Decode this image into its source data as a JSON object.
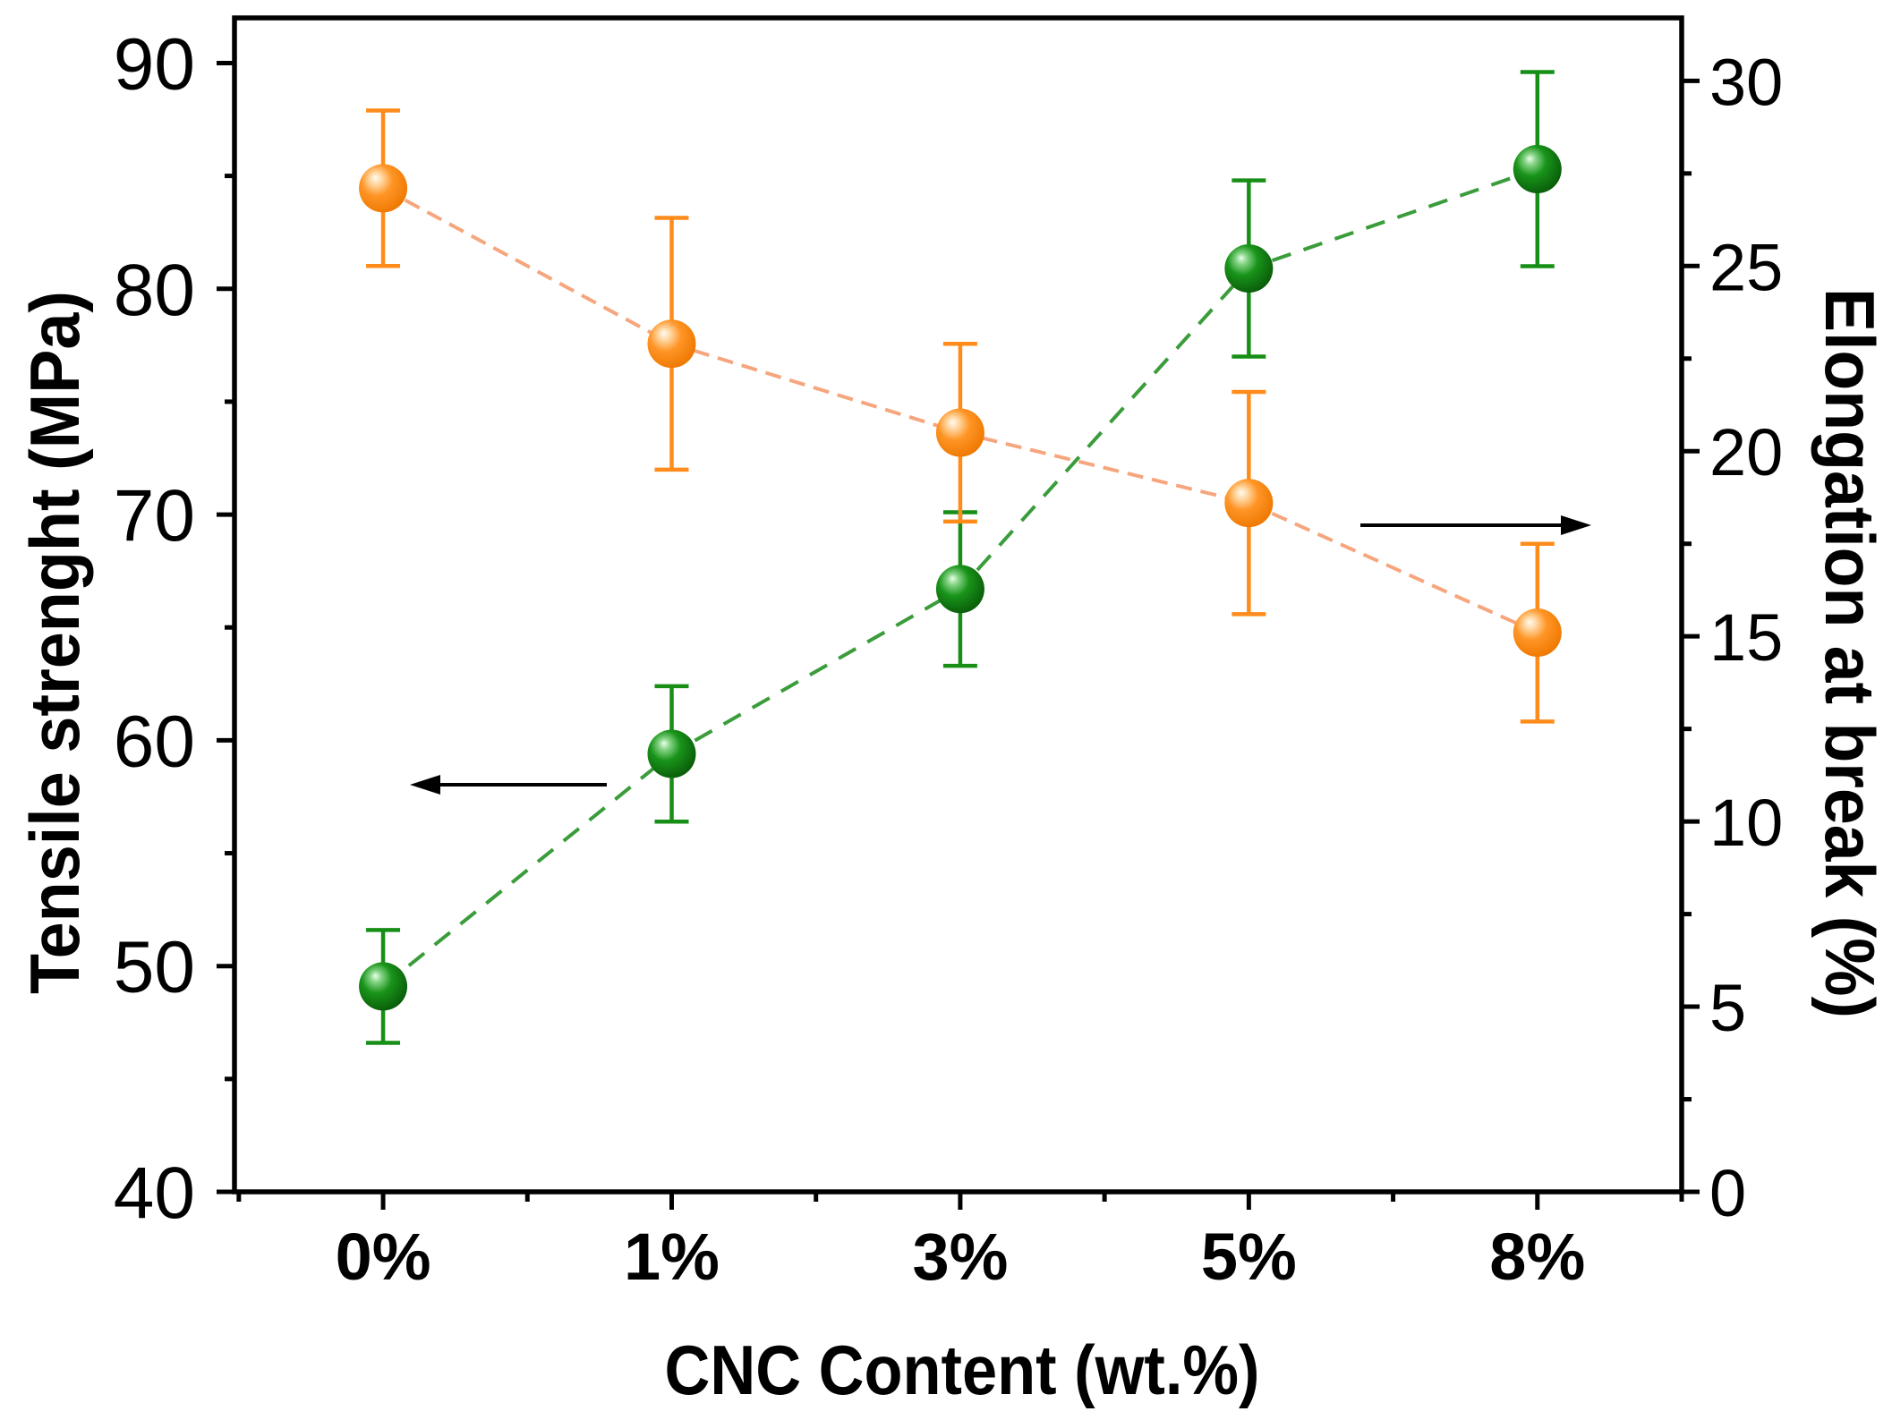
{
  "chart_data": {
    "type": "line",
    "categories": [
      "0%",
      "1%",
      "3%",
      "5%",
      "8%"
    ],
    "xlabel": "CNC Content (wt.%)",
    "ylabel": "Tensile strenght (MPa)",
    "y2label": "Elongation at break (%)",
    "ylim": [
      40,
      92
    ],
    "y2lim": [
      0,
      31.7
    ],
    "yticks": [
      40,
      50,
      60,
      70,
      80,
      90
    ],
    "y2ticks": [
      0,
      5,
      10,
      15,
      20,
      25,
      30
    ],
    "grid": false,
    "series": [
      {
        "right_axis": false,
        "values": [
          49.1,
          59.4,
          66.7,
          80.9,
          85.3
        ],
        "errors": [
          2.5,
          3.0,
          3.4,
          3.9,
          4.3
        ],
        "color": "#178f17",
        "line_color": "#3a9c3a"
      },
      {
        "right_axis": true,
        "values": [
          27.1,
          22.9,
          20.5,
          18.6,
          15.1
        ],
        "errors": [
          2.1,
          3.4,
          2.4,
          3.0,
          2.4
        ],
        "color": "#ff8c1a",
        "line_color": "#f6a67e"
      }
    ]
  }
}
